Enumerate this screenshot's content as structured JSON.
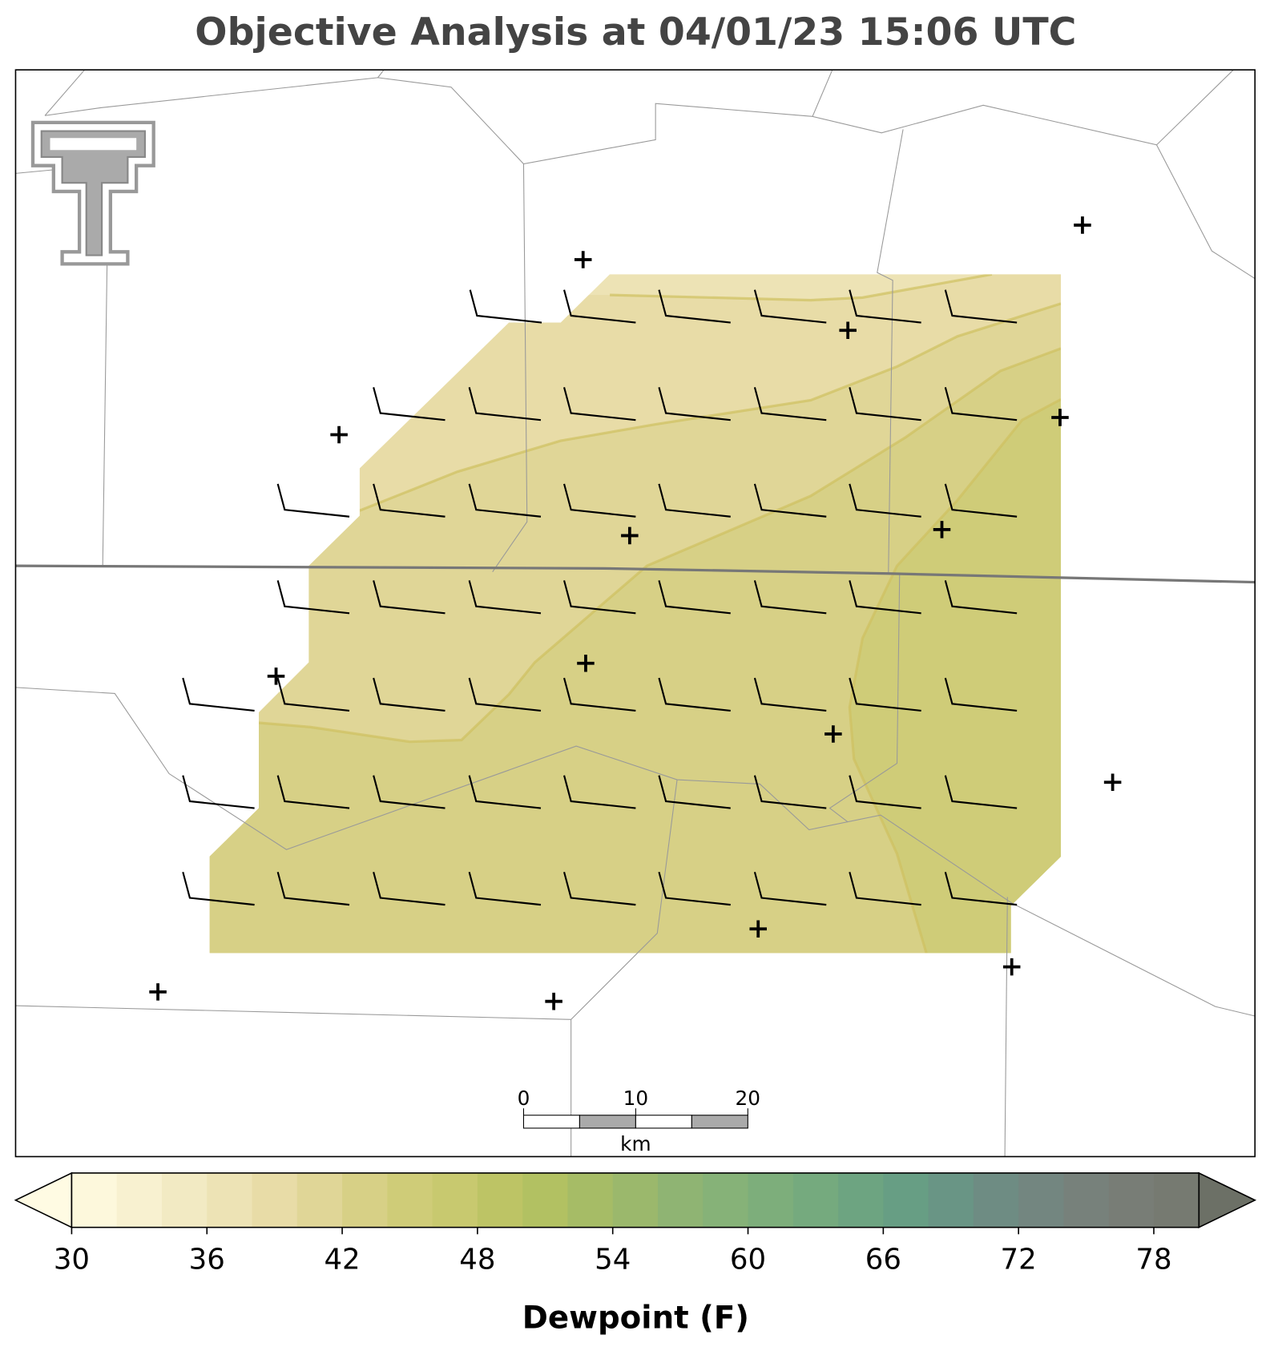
{
  "chart_data": {
    "type": "contour-map",
    "title": "Objective Analysis at 04/01/23 15:06 UTC",
    "colorbar": {
      "label": "Dewpoint (F)",
      "levels": [
        30,
        32,
        34,
        36,
        38,
        40,
        42,
        44,
        46,
        48,
        50,
        52,
        54,
        56,
        58,
        60,
        62,
        64,
        66,
        68,
        70,
        72,
        74,
        76,
        78,
        80
      ],
      "colors": [
        "#fdf8dc",
        "#f8f1d0",
        "#f2eac3",
        "#ede3b5",
        "#e8dca7",
        "#e0d697",
        "#d7d086",
        "#cfcc78",
        "#c8c96f",
        "#bdc465",
        "#b2c162",
        "#a6bc66",
        "#9bb86c",
        "#8fb473",
        "#86b278",
        "#7dae7b",
        "#75aa7e",
        "#6da481",
        "#679e84",
        "#699585",
        "#6e8c83",
        "#738680",
        "#77817b",
        "#787d76",
        "#767a71"
      ],
      "under_color": "#fffbe3",
      "over_color": "#6c7066",
      "ticks": [
        30,
        36,
        42,
        48,
        54,
        60,
        66,
        72,
        78
      ]
    },
    "scale_bar": {
      "ticks": [
        0,
        10,
        20
      ],
      "unit": "km"
    }
  }
}
